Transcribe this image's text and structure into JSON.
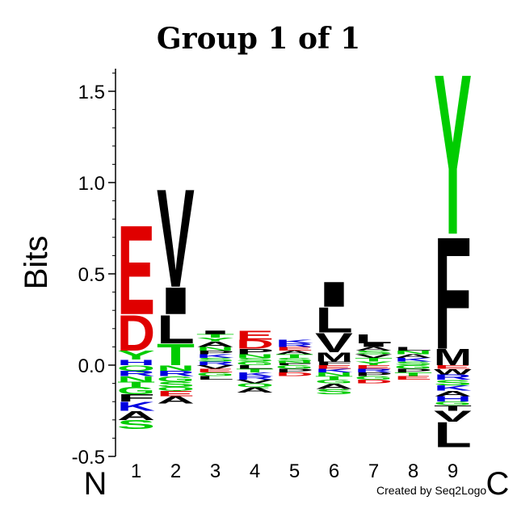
{
  "chart_data": {
    "type": "sequence-logo",
    "title": "Group 1 of 1",
    "ylabel": "Bits",
    "ylim": [
      -0.5,
      1.6
    ],
    "yticks": [
      -0.5,
      0.0,
      0.5,
      1.0,
      1.5
    ],
    "ytick_labels": [
      "-0.5",
      "0.0",
      "0.5",
      "1.0",
      "1.5"
    ],
    "positions": [
      "1",
      "2",
      "3",
      "4",
      "5",
      "6",
      "7",
      "8",
      "9"
    ],
    "n_term_label": "N",
    "c_term_label": "C",
    "credit": "Created by Seq2Logo",
    "colors": {
      "acidic": "#e00000",
      "hydrophobic": "#000000",
      "polar": "#00cc00",
      "basic": "#0000e0",
      "other": "#e08000"
    },
    "columns": [
      {
        "position": "1",
        "positive": [
          {
            "letter": "H",
            "height": 0.03,
            "color": "#0000e0"
          },
          {
            "letter": "Y",
            "height": 0.05,
            "color": "#00cc00"
          },
          {
            "letter": "D",
            "height": 0.2,
            "color": "#e00000"
          },
          {
            "letter": "E",
            "height": 0.5,
            "color": "#e00000"
          }
        ],
        "negative": [
          {
            "letter": "Q",
            "height": 0.03,
            "color": "#00cc00"
          },
          {
            "letter": "R",
            "height": 0.03,
            "color": "#0000e0"
          },
          {
            "letter": "N",
            "height": 0.03,
            "color": "#00cc00"
          },
          {
            "letter": "T",
            "height": 0.03,
            "color": "#00cc00"
          },
          {
            "letter": "G",
            "height": 0.04,
            "color": "#00cc00"
          },
          {
            "letter": "F",
            "height": 0.04,
            "color": "#000000"
          },
          {
            "letter": "K",
            "height": 0.05,
            "color": "#0000e0"
          },
          {
            "letter": "A",
            "height": 0.05,
            "color": "#000000"
          },
          {
            "letter": "S",
            "height": 0.05,
            "color": "#00cc00"
          }
        ]
      },
      {
        "position": "2",
        "positive": [
          {
            "letter": "T",
            "height": 0.12,
            "color": "#00cc00"
          },
          {
            "letter": "L",
            "height": 0.16,
            "color": "#000000"
          },
          {
            "letter": "I",
            "height": 0.15,
            "color": "#000000"
          },
          {
            "letter": "V",
            "height": 0.55,
            "color": "#000000"
          }
        ],
        "negative": [
          {
            "letter": "N",
            "height": 0.03,
            "color": "#00cc00"
          },
          {
            "letter": "R",
            "height": 0.03,
            "color": "#0000e0"
          },
          {
            "letter": "G",
            "height": 0.03,
            "color": "#00cc00"
          },
          {
            "letter": "S",
            "height": 0.03,
            "color": "#00cc00"
          },
          {
            "letter": "Q",
            "height": 0.02,
            "color": "#00cc00"
          },
          {
            "letter": "E",
            "height": 0.03,
            "color": "#e00000"
          },
          {
            "letter": "A",
            "height": 0.04,
            "color": "#000000"
          }
        ]
      },
      {
        "position": "3",
        "positive": [
          {
            "letter": "R",
            "height": 0.02,
            "color": "#0000e0"
          },
          {
            "letter": "S",
            "height": 0.02,
            "color": "#00cc00"
          },
          {
            "letter": "K",
            "height": 0.02,
            "color": "#0000e0"
          },
          {
            "letter": "P",
            "height": 0.02,
            "color": "#000000"
          },
          {
            "letter": "N",
            "height": 0.02,
            "color": "#00cc00"
          },
          {
            "letter": "A",
            "height": 0.03,
            "color": "#000000"
          },
          {
            "letter": "Y",
            "height": 0.02,
            "color": "#00cc00"
          },
          {
            "letter": "T",
            "height": 0.02,
            "color": "#00cc00"
          },
          {
            "letter": "I",
            "height": 0.02,
            "color": "#000000"
          }
        ],
        "negative": [
          {
            "letter": "V",
            "height": 0.02,
            "color": "#000000"
          },
          {
            "letter": "E",
            "height": 0.02,
            "color": "#e00000"
          },
          {
            "letter": "G",
            "height": 0.02,
            "color": "#00cc00"
          },
          {
            "letter": "L",
            "height": 0.02,
            "color": "#000000"
          }
        ]
      },
      {
        "position": "4",
        "positive": [
          {
            "letter": "G",
            "height": 0.02,
            "color": "#00cc00"
          },
          {
            "letter": "S",
            "height": 0.02,
            "color": "#00cc00"
          },
          {
            "letter": "N",
            "height": 0.02,
            "color": "#00cc00"
          },
          {
            "letter": "P",
            "height": 0.03,
            "color": "#000000"
          },
          {
            "letter": "D",
            "height": 0.05,
            "color": "#e00000"
          },
          {
            "letter": "E",
            "height": 0.05,
            "color": "#e00000"
          }
        ],
        "negative": [
          {
            "letter": "L",
            "height": 0.02,
            "color": "#000000"
          },
          {
            "letter": "T",
            "height": 0.02,
            "color": "#00cc00"
          },
          {
            "letter": "K",
            "height": 0.02,
            "color": "#0000e0"
          },
          {
            "letter": "R",
            "height": 0.02,
            "color": "#0000e0"
          },
          {
            "letter": "V",
            "height": 0.02,
            "color": "#000000"
          },
          {
            "letter": "Q",
            "height": 0.02,
            "color": "#00cc00"
          },
          {
            "letter": "A",
            "height": 0.03,
            "color": "#000000"
          }
        ]
      },
      {
        "position": "5",
        "positive": [
          {
            "letter": "F",
            "height": 0.01,
            "color": "#000000"
          },
          {
            "letter": "N",
            "height": 0.01,
            "color": "#00cc00"
          },
          {
            "letter": "S",
            "height": 0.02,
            "color": "#00cc00"
          },
          {
            "letter": "T",
            "height": 0.02,
            "color": "#00cc00"
          },
          {
            "letter": "A",
            "height": 0.02,
            "color": "#000000"
          },
          {
            "letter": "E",
            "height": 0.02,
            "color": "#e00000"
          },
          {
            "letter": "R",
            "height": 0.02,
            "color": "#0000e0"
          },
          {
            "letter": "K",
            "height": 0.02,
            "color": "#0000e0"
          }
        ],
        "negative": [
          {
            "letter": "G",
            "height": 0.02,
            "color": "#00cc00"
          },
          {
            "letter": "P",
            "height": 0.02,
            "color": "#000000"
          },
          {
            "letter": "D",
            "height": 0.02,
            "color": "#e00000"
          }
        ]
      },
      {
        "position": "6",
        "positive": [
          {
            "letter": "F",
            "height": 0.02,
            "color": "#000000"
          },
          {
            "letter": "M",
            "height": 0.05,
            "color": "#000000"
          },
          {
            "letter": "V",
            "height": 0.11,
            "color": "#000000"
          },
          {
            "letter": "L",
            "height": 0.14,
            "color": "#000000"
          },
          {
            "letter": "I",
            "height": 0.14,
            "color": "#000000"
          }
        ],
        "negative": [
          {
            "letter": "E",
            "height": 0.02,
            "color": "#e00000"
          },
          {
            "letter": "K",
            "height": 0.02,
            "color": "#0000e0"
          },
          {
            "letter": "N",
            "height": 0.02,
            "color": "#00cc00"
          },
          {
            "letter": "T",
            "height": 0.02,
            "color": "#00cc00"
          },
          {
            "letter": "G",
            "height": 0.02,
            "color": "#00cc00"
          },
          {
            "letter": "A",
            "height": 0.03,
            "color": "#000000"
          },
          {
            "letter": "S",
            "height": 0.03,
            "color": "#00cc00"
          }
        ]
      },
      {
        "position": "7",
        "positive": [
          {
            "letter": "Y",
            "height": 0.02,
            "color": "#00cc00"
          },
          {
            "letter": "T",
            "height": 0.02,
            "color": "#00cc00"
          },
          {
            "letter": "V",
            "height": 0.02,
            "color": "#000000"
          },
          {
            "letter": "S",
            "height": 0.02,
            "color": "#00cc00"
          },
          {
            "letter": "A",
            "height": 0.02,
            "color": "#000000"
          },
          {
            "letter": "I",
            "height": 0.02,
            "color": "#000000"
          },
          {
            "letter": "L",
            "height": 0.05,
            "color": "#000000"
          }
        ],
        "negative": [
          {
            "letter": "E",
            "height": 0.02,
            "color": "#e00000"
          },
          {
            "letter": "R",
            "height": 0.02,
            "color": "#0000e0"
          },
          {
            "letter": "P",
            "height": 0.02,
            "color": "#000000"
          },
          {
            "letter": "G",
            "height": 0.02,
            "color": "#00cc00"
          },
          {
            "letter": "D",
            "height": 0.02,
            "color": "#e00000"
          }
        ]
      },
      {
        "position": "8",
        "positive": [
          {
            "letter": "S",
            "height": 0.02,
            "color": "#00cc00"
          },
          {
            "letter": "K",
            "height": 0.02,
            "color": "#0000e0"
          },
          {
            "letter": "A",
            "height": 0.02,
            "color": "#000000"
          },
          {
            "letter": "N",
            "height": 0.02,
            "color": "#00cc00"
          },
          {
            "letter": "L",
            "height": 0.02,
            "color": "#000000"
          }
        ],
        "negative": [
          {
            "letter": "G",
            "height": 0.02,
            "color": "#00cc00"
          },
          {
            "letter": "P",
            "height": 0.02,
            "color": "#000000"
          },
          {
            "letter": "T",
            "height": 0.02,
            "color": "#00cc00"
          },
          {
            "letter": "E",
            "height": 0.02,
            "color": "#e00000"
          }
        ]
      },
      {
        "position": "9",
        "positive": [
          {
            "letter": "M",
            "height": 0.09,
            "color": "#000000"
          },
          {
            "letter": "F",
            "height": 0.63,
            "color": "#000000"
          },
          {
            "letter": "Y",
            "height": 0.9,
            "color": "#00cc00"
          }
        ],
        "negative": [
          {
            "letter": "E",
            "height": 0.02,
            "color": "#e00000"
          },
          {
            "letter": "W",
            "height": 0.03,
            "color": "#000000"
          },
          {
            "letter": "R",
            "height": 0.03,
            "color": "#0000e0"
          },
          {
            "letter": "S",
            "height": 0.03,
            "color": "#00cc00"
          },
          {
            "letter": "K",
            "height": 0.03,
            "color": "#0000e0"
          },
          {
            "letter": "A",
            "height": 0.03,
            "color": "#000000"
          },
          {
            "letter": "H",
            "height": 0.03,
            "color": "#0000e0"
          },
          {
            "letter": "G",
            "height": 0.02,
            "color": "#00cc00"
          },
          {
            "letter": "T",
            "height": 0.03,
            "color": "#000000"
          },
          {
            "letter": "V",
            "height": 0.06,
            "color": "#000000"
          },
          {
            "letter": "L",
            "height": 0.14,
            "color": "#000000"
          }
        ]
      }
    ]
  }
}
